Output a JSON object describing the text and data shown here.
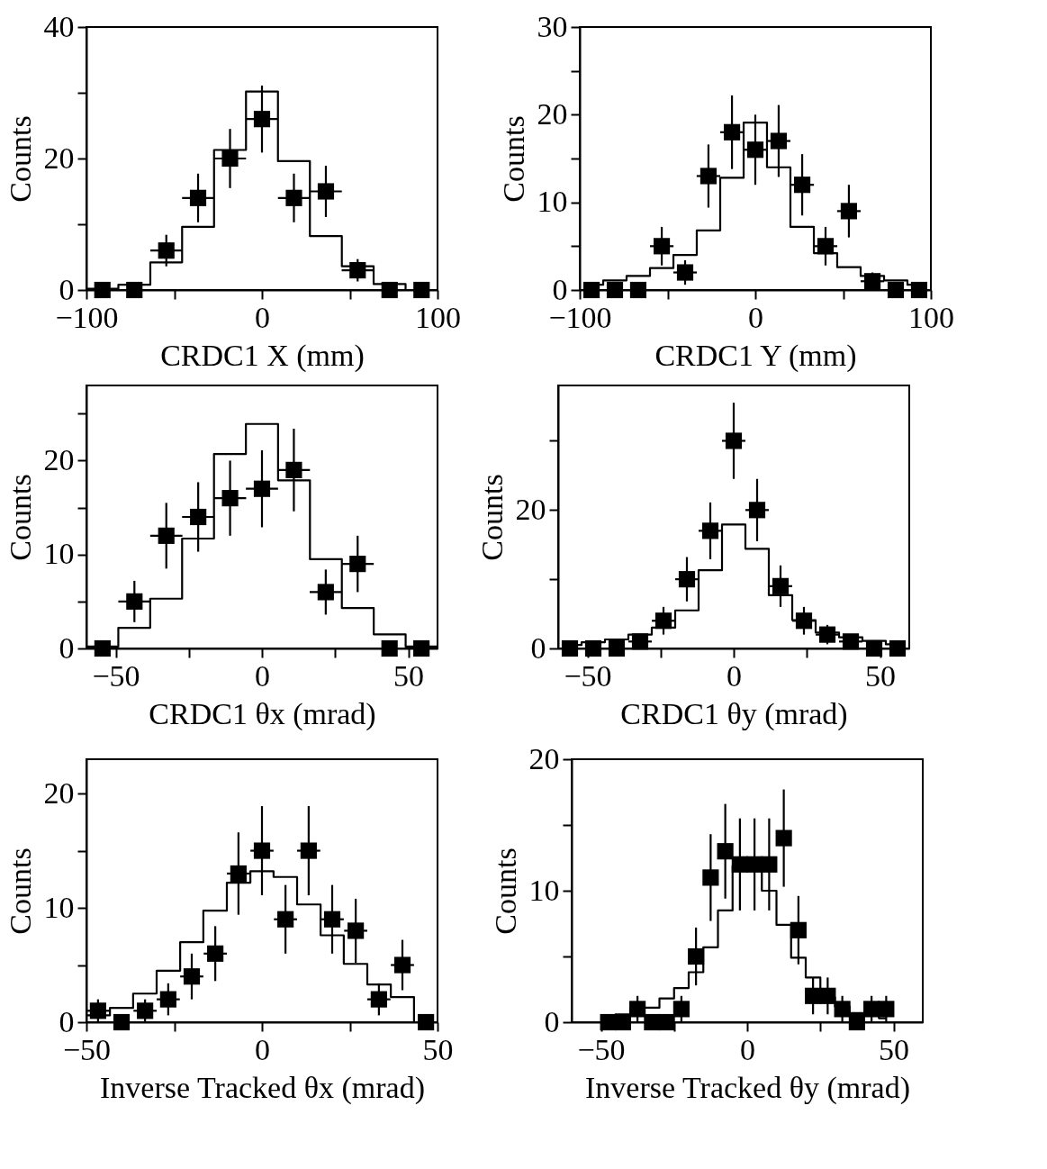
{
  "chart_data": [
    {
      "type": "histogram",
      "xlabel": "CRDC1 X (mm)",
      "ylabel": "Counts",
      "xlim": [
        -100,
        100
      ],
      "ylim": [
        0,
        40
      ],
      "xticks": [
        {
          "value": -100,
          "label": "−100"
        },
        {
          "value": -50,
          "label": null
        },
        0,
        {
          "value": 50,
          "label": null
        },
        100
      ],
      "yticks": [
        0,
        {
          "value": 10,
          "label": null
        },
        20,
        {
          "value": 30,
          "label": null
        },
        40
      ],
      "grid": false,
      "bins": [
        -100,
        -81.8,
        -63.6,
        -45.5,
        -27.3,
        -9.1,
        9.1,
        27.3,
        45.5,
        63.6,
        81.8,
        100
      ],
      "series": [
        {
          "type": "histogram",
          "color": "#000000",
          "values": [
            0.2,
            0.8,
            4.2,
            9.6,
            21.3,
            30.2,
            19.6,
            8.2,
            3.6,
            0.9,
            0
          ]
        },
        {
          "type": "scatter",
          "color": "#000000",
          "marker": "square",
          "x": [
            -90.9,
            -72.7,
            -54.5,
            -36.4,
            -18.2,
            0,
            18.2,
            36.4,
            54.5,
            72.7,
            90.9
          ],
          "values": [
            0,
            0,
            6,
            14,
            20,
            26,
            14,
            15,
            3,
            0,
            0
          ],
          "errors": [
            null,
            null,
            2.4,
            3.7,
            4.5,
            5.1,
            3.7,
            3.9,
            1.7,
            null,
            null
          ],
          "xerrors": [
            null,
            null,
            9.1,
            9.1,
            9.1,
            9.1,
            9.1,
            9.1,
            9.1,
            null,
            null
          ]
        }
      ]
    },
    {
      "type": "histogram",
      "xlabel": "CRDC1 Y (mm)",
      "ylabel": "Counts",
      "xlim": [
        -100,
        100
      ],
      "ylim": [
        0,
        30
      ],
      "xticks": [
        {
          "value": -100,
          "label": "−100"
        },
        {
          "value": -50,
          "label": null
        },
        0,
        {
          "value": 50,
          "label": null
        },
        100
      ],
      "yticks": [
        0,
        {
          "value": 5,
          "label": null
        },
        10,
        {
          "value": 15,
          "label": null
        },
        20,
        {
          "value": 25,
          "label": null
        },
        30
      ],
      "grid": false,
      "series": [
        {
          "type": "step",
          "color": "#000000",
          "x": [
            -93.3,
            -80,
            -66.7,
            -53.3,
            -40,
            -26.7,
            -13.3,
            0,
            13.3,
            26.7,
            40,
            53.3,
            66.7,
            80,
            93.3
          ],
          "values": [
            0.6,
            1.1,
            1.6,
            2.5,
            4.0,
            6.8,
            12.8,
            19.1,
            14.0,
            7.2,
            4.2,
            2.6,
            1.6,
            1.1,
            0.6
          ]
        },
        {
          "type": "scatter",
          "color": "#000000",
          "marker": "square",
          "x": [
            -93.3,
            -80,
            -66.7,
            -53.3,
            -40,
            -26.7,
            -13.3,
            0,
            13.3,
            26.7,
            40,
            53.3,
            66.7,
            80,
            93.3
          ],
          "values": [
            0,
            0,
            0,
            5,
            2,
            13,
            18,
            16,
            17,
            12,
            5,
            9,
            1,
            0,
            0
          ],
          "errors": [
            null,
            null,
            null,
            2.2,
            1.4,
            3.6,
            4.2,
            4,
            4.1,
            3.5,
            2.2,
            3,
            1,
            null,
            null
          ],
          "xerrors": [
            null,
            null,
            null,
            6.7,
            6.7,
            6.7,
            6.7,
            6.7,
            6.7,
            6.7,
            6.7,
            6.7,
            6.7,
            null,
            null
          ]
        }
      ]
    },
    {
      "type": "histogram",
      "xlabel": "CRDC1 θx (mrad)",
      "ylabel": "Counts",
      "xlim": [
        -60,
        60
      ],
      "ylim": [
        0,
        28
      ],
      "xticks": [
        {
          "value": -50,
          "label": "−50"
        },
        {
          "value": -25,
          "label": null
        },
        0,
        {
          "value": 25,
          "label": null
        },
        50
      ],
      "yticks": [
        0,
        {
          "value": 5,
          "label": null
        },
        10,
        {
          "value": 15,
          "label": null
        },
        20,
        {
          "value": 25,
          "label": null
        }
      ],
      "grid": false,
      "bins": [
        -60,
        -49.1,
        -38.2,
        -27.3,
        -16.4,
        -5.5,
        5.5,
        16.4,
        27.3,
        38.2,
        49.1,
        60
      ],
      "series": [
        {
          "type": "histogram",
          "color": "#000000",
          "values": [
            0.2,
            2.2,
            5.3,
            11.7,
            20.7,
            23.9,
            17.9,
            9.5,
            4.3,
            1.5,
            0.2
          ]
        },
        {
          "type": "scatter",
          "color": "#000000",
          "marker": "square",
          "x": [
            -54.5,
            -43.6,
            -32.7,
            -21.8,
            -10.9,
            0,
            10.9,
            21.8,
            32.7,
            43.6,
            54.5
          ],
          "values": [
            0,
            5,
            12,
            14,
            16,
            17,
            19,
            6,
            9,
            0,
            0
          ],
          "errors": [
            null,
            2.2,
            3.5,
            3.7,
            4,
            4.1,
            4.4,
            2.4,
            3,
            null,
            null
          ],
          "xerrors": [
            null,
            5.5,
            5.5,
            5.5,
            5.5,
            5.5,
            5.5,
            5.5,
            5.5,
            null,
            null
          ]
        }
      ]
    },
    {
      "type": "histogram",
      "xlabel": "CRDC1 θy (mrad)",
      "ylabel": "Counts",
      "xlim": [
        -60,
        60
      ],
      "ylim": [
        0,
        38
      ],
      "xticks": [
        {
          "value": -50,
          "label": "−50"
        },
        {
          "value": -25,
          "label": null
        },
        0,
        {
          "value": 25,
          "label": null
        },
        50
      ],
      "yticks": [
        0,
        {
          "value": 10,
          "label": null
        },
        20,
        {
          "value": 30,
          "label": null
        }
      ],
      "grid": false,
      "series": [
        {
          "type": "step",
          "color": "#000000",
          "x": [
            -56,
            -48,
            -40,
            -32,
            -24,
            -16,
            -8,
            0,
            8,
            16,
            24,
            32,
            40,
            48,
            56
          ],
          "values": [
            0.5,
            0.9,
            1.3,
            2.0,
            3.0,
            5.5,
            11.3,
            17.9,
            14.4,
            7.7,
            4.1,
            2.3,
            1.6,
            1.1,
            0.6
          ]
        },
        {
          "type": "scatter",
          "color": "#000000",
          "marker": "square",
          "x": [
            -56,
            -48,
            -40,
            -32,
            -24,
            -16,
            -8,
            0,
            8,
            16,
            24,
            32,
            40,
            48,
            56
          ],
          "values": [
            0,
            0,
            0,
            1,
            4,
            10,
            17,
            30,
            20,
            9,
            4,
            2,
            1,
            0,
            0
          ],
          "errors": [
            null,
            null,
            null,
            1,
            2,
            3.2,
            4.1,
            5.5,
            4.5,
            3,
            2,
            1.4,
            1,
            null,
            null
          ],
          "xerrors": [
            null,
            null,
            null,
            4,
            4,
            4,
            4,
            4,
            4,
            4,
            4,
            4,
            4,
            null,
            null
          ]
        }
      ]
    },
    {
      "type": "histogram",
      "xlabel": "Inverse Tracked θx (mrad)",
      "ylabel": "Counts",
      "xlim": [
        -50,
        50
      ],
      "ylim": [
        0,
        23
      ],
      "xticks": [
        {
          "value": -50,
          "label": "−50"
        },
        {
          "value": -25,
          "label": null
        },
        0,
        {
          "value": 25,
          "label": null
        },
        50
      ],
      "yticks": [
        0,
        {
          "value": 5,
          "label": null
        },
        10,
        {
          "value": 15,
          "label": null
        },
        20
      ],
      "grid": false,
      "bins": [
        -50,
        -43.3,
        -36.7,
        -30,
        -23.3,
        -16.7,
        -10,
        -3.3,
        3.3,
        10,
        16.7,
        23.3,
        30,
        36.7,
        43.3,
        50
      ],
      "series": [
        {
          "type": "histogram",
          "color": "#000000",
          "values": [
            0.6,
            1.25,
            2.5,
            4.5,
            7.0,
            9.75,
            12.2,
            13.2,
            12.7,
            10.3,
            7.6,
            5.1,
            3.3,
            2.2,
            0
          ]
        },
        {
          "type": "scatter",
          "color": "#000000",
          "marker": "square",
          "x": [
            -46.7,
            -40,
            -33.3,
            -26.7,
            -20,
            -13.3,
            -6.7,
            0,
            6.7,
            13.3,
            20,
            26.7,
            33.3,
            40,
            46.7
          ],
          "values": [
            1,
            0,
            1,
            2,
            4,
            6,
            13,
            15,
            9,
            15,
            9,
            8,
            2,
            5,
            0
          ],
          "errors": [
            1,
            null,
            1,
            1.4,
            2,
            2.4,
            3.6,
            3.9,
            3,
            3.9,
            3,
            2.8,
            1.4,
            2.2,
            null
          ],
          "xerrors": [
            3.3,
            null,
            3.3,
            3.3,
            3.3,
            3.3,
            3.3,
            3.3,
            3.3,
            3.3,
            3.3,
            3.3,
            3.3,
            3.3,
            null
          ]
        }
      ]
    },
    {
      "type": "histogram",
      "xlabel": "Inverse Tracked θy (mrad)",
      "ylabel": "Counts",
      "xlim": [
        -60,
        60
      ],
      "ylim": [
        0,
        20
      ],
      "xticks": [
        {
          "value": -50,
          "label": "−50"
        },
        {
          "value": -25,
          "label": null
        },
        0,
        {
          "value": 25,
          "label": null
        },
        50
      ],
      "yticks": [
        0,
        {
          "value": 5,
          "label": null
        },
        10,
        {
          "value": 15,
          "label": null
        },
        20
      ],
      "grid": false,
      "series": [
        {
          "type": "step",
          "color": "#000000",
          "x": [
            -47.5,
            -42.5,
            -37.5,
            -32.5,
            -27.5,
            -22.5,
            -17.5,
            -12.5,
            -7.5,
            -2.5,
            2.5,
            7.5,
            12.5,
            17.5,
            22.5,
            27.5,
            32.5,
            37.5,
            42.5,
            47.5
          ],
          "values": [
            0.3,
            0.6,
            1.1,
            1.1,
            1.8,
            2.6,
            3.8,
            5.7,
            8.5,
            11.9,
            11.9,
            10,
            7.4,
            4.9,
            3.4,
            1.9,
            1.2,
            0.7,
            0.5,
            0.3
          ]
        },
        {
          "type": "scatter",
          "color": "#000000",
          "marker": "square",
          "x": [
            -47.5,
            -42.5,
            -37.5,
            -32.5,
            -27.5,
            -22.5,
            -17.5,
            -12.5,
            -7.5,
            -2.5,
            2.5,
            7.5,
            12.5,
            17.5,
            22.5,
            27.5,
            32.5,
            37.5,
            42.5,
            47.5
          ],
          "values": [
            0,
            0,
            1,
            0,
            0,
            1,
            5,
            11,
            13,
            12,
            12,
            12,
            14,
            7,
            2,
            2,
            1,
            0,
            1,
            1
          ],
          "errors": [
            null,
            null,
            1,
            null,
            null,
            1,
            2.2,
            3.3,
            3.6,
            3.5,
            3.5,
            3.5,
            3.7,
            2.6,
            1.4,
            1.4,
            1,
            null,
            1,
            1
          ],
          "xerrors": [
            null,
            null,
            2.5,
            null,
            null,
            2.5,
            2.5,
            2.5,
            2.5,
            2.5,
            2.5,
            2.5,
            2.5,
            2.5,
            2.5,
            2.5,
            2.5,
            null,
            2.5,
            2.5
          ]
        }
      ]
    }
  ]
}
